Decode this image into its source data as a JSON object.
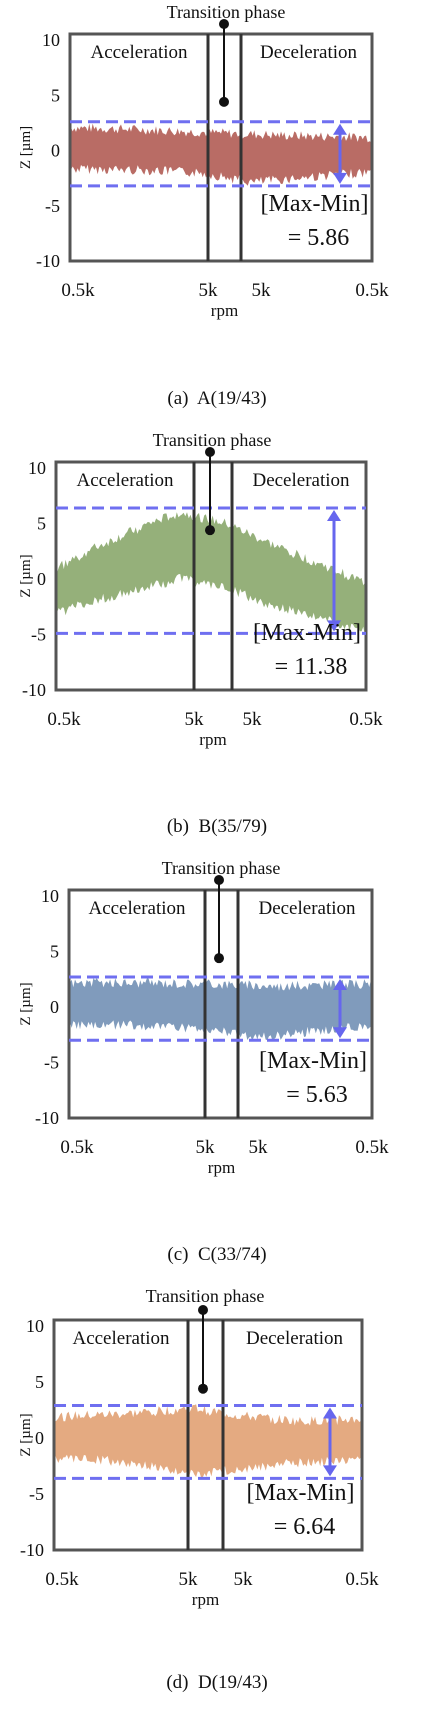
{
  "chart_data": [
    {
      "type": "area",
      "panel_label": "(a)",
      "panel_name": "A(19/43)",
      "ylabel": "Z [µm]",
      "xlabel": "rpm",
      "ylim": [
        -10,
        10
      ],
      "yticks": [
        10,
        5,
        0,
        -5,
        -10
      ],
      "xticks": [
        "0.5k",
        "5k",
        "5k",
        "0.5k"
      ],
      "annotation_top": "Transition phase",
      "region_left": "Acceleration",
      "region_right": "Deceleration",
      "metric_label": "[Max-Min]",
      "metric_value": "= 5.86",
      "dash_upper": 2.6,
      "dash_lower": -3.2,
      "envelope_upper": [
        [
          0.0,
          1.9
        ],
        [
          0.25,
          1.7
        ],
        [
          0.5,
          1.4
        ],
        [
          0.7,
          1.2
        ],
        [
          1.0,
          1.0
        ]
      ],
      "envelope_lower": [
        [
          0.0,
          -1.5
        ],
        [
          0.25,
          -1.6
        ],
        [
          0.45,
          -1.9
        ],
        [
          0.6,
          -2.7
        ],
        [
          0.8,
          -2.2
        ],
        [
          1.0,
          -1.8
        ]
      ],
      "color": "#b5645d"
    },
    {
      "type": "area",
      "panel_label": "(b)",
      "panel_name": "B(35/79)",
      "ylabel": "Z [µm]",
      "xlabel": "rpm",
      "ylim": [
        -10,
        10
      ],
      "yticks": [
        10,
        5,
        0,
        -5,
        -10
      ],
      "xticks": [
        "0.5k",
        "5k",
        "5k",
        "0.5k"
      ],
      "annotation_top": "Transition phase",
      "region_left": "Acceleration",
      "region_right": "Deceleration",
      "metric_label": "[Max-Min]",
      "metric_value": "= 11.38",
      "dash_upper": 6.4,
      "dash_lower": -4.9,
      "envelope_upper": [
        [
          0.0,
          0.8
        ],
        [
          0.12,
          2.6
        ],
        [
          0.3,
          4.8
        ],
        [
          0.4,
          5.8
        ],
        [
          0.55,
          4.8
        ],
        [
          0.7,
          2.9
        ],
        [
          0.85,
          1.2
        ],
        [
          1.0,
          -0.5
        ]
      ],
      "envelope_lower": [
        [
          0.0,
          -2.9
        ],
        [
          0.12,
          -1.8
        ],
        [
          0.3,
          -0.5
        ],
        [
          0.4,
          0.2
        ],
        [
          0.55,
          -0.7
        ],
        [
          0.7,
          -2.2
        ],
        [
          0.85,
          -3.3
        ],
        [
          1.0,
          -4.6
        ]
      ],
      "color": "#8fac73"
    },
    {
      "type": "area",
      "panel_label": "(c)",
      "panel_name": "C(33/74)",
      "ylabel": "Z [µm]",
      "xlabel": "rpm",
      "ylim": [
        -10,
        10
      ],
      "yticks": [
        10,
        5,
        0,
        -5,
        -10
      ],
      "xticks": [
        "0.5k",
        "5k",
        "5k",
        "0.5k"
      ],
      "annotation_top": "Transition phase",
      "region_left": "Acceleration",
      "region_right": "Deceleration",
      "metric_label": "[Max-Min]",
      "metric_value": "= 5.63",
      "dash_upper": 2.7,
      "dash_lower": -3.0,
      "envelope_upper": [
        [
          0.0,
          2.0
        ],
        [
          0.3,
          2.0
        ],
        [
          0.5,
          1.9
        ],
        [
          0.7,
          1.7
        ],
        [
          1.0,
          1.9
        ]
      ],
      "envelope_lower": [
        [
          0.0,
          -1.4
        ],
        [
          0.3,
          -1.5
        ],
        [
          0.5,
          -2.0
        ],
        [
          0.62,
          -2.6
        ],
        [
          0.8,
          -2.0
        ],
        [
          1.0,
          -1.5
        ]
      ],
      "color": "#7996b8"
    },
    {
      "type": "area",
      "panel_label": "(d)",
      "panel_name": "D(19/43)",
      "ylabel": "Z [µm]",
      "xlabel": "rpm",
      "ylim": [
        -10,
        10
      ],
      "yticks": [
        10,
        5,
        0,
        -5,
        -10
      ],
      "xticks": [
        "0.5k",
        "5k",
        "5k",
        "0.5k"
      ],
      "annotation_top": "Transition phase",
      "region_left": "Acceleration",
      "region_right": "Deceleration",
      "metric_label": "[Max-Min]",
      "metric_value": "= 6.64",
      "dash_upper": 2.9,
      "dash_lower": -3.6,
      "envelope_upper": [
        [
          0.0,
          1.7
        ],
        [
          0.25,
          2.0
        ],
        [
          0.45,
          2.5
        ],
        [
          0.6,
          1.8
        ],
        [
          0.8,
          1.3
        ],
        [
          1.0,
          1.5
        ]
      ],
      "envelope_lower": [
        [
          0.0,
          -1.6
        ],
        [
          0.25,
          -2.0
        ],
        [
          0.45,
          -3.1
        ],
        [
          0.6,
          -2.6
        ],
        [
          0.8,
          -2.0
        ],
        [
          1.0,
          -1.8
        ]
      ],
      "color": "#e3a57a"
    }
  ]
}
